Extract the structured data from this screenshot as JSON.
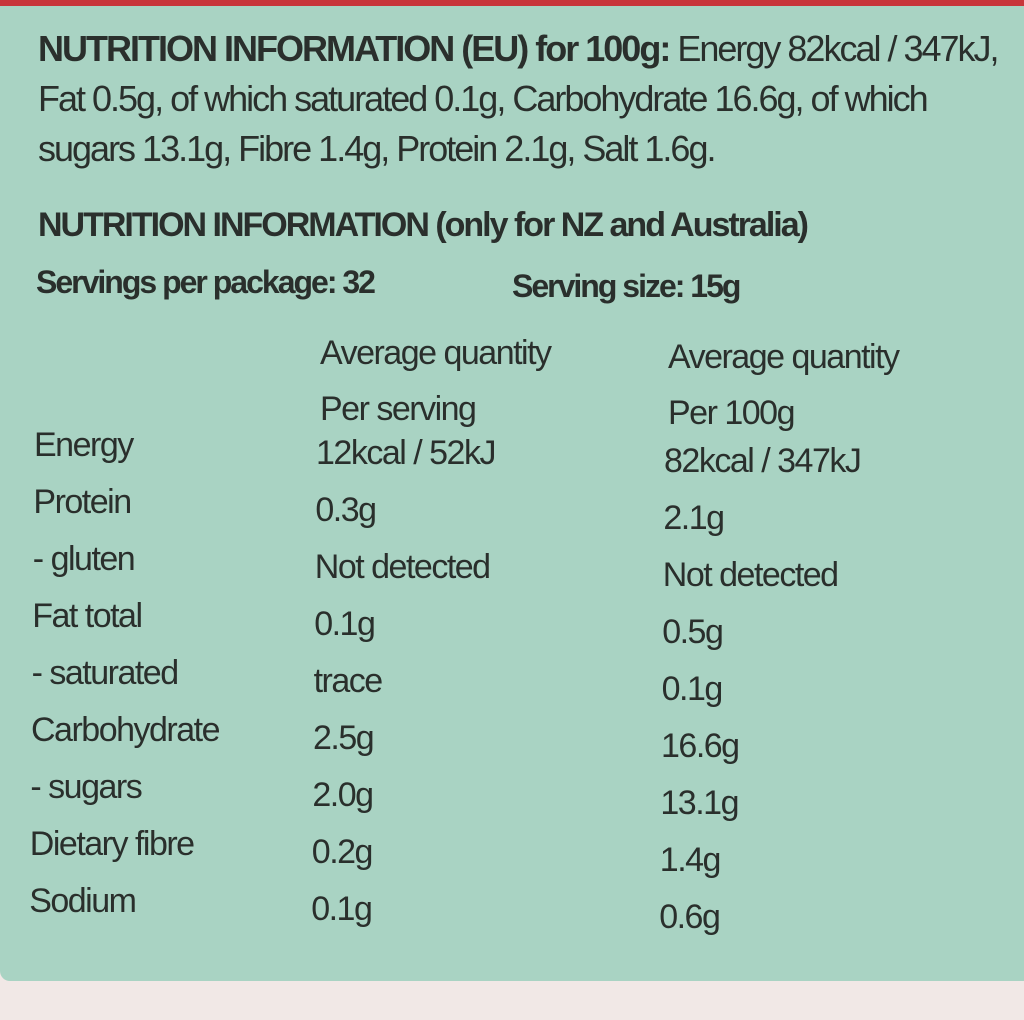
{
  "eu": {
    "heading": "NUTRITION INFORMATION (EU) for 100g:",
    "text": "Energy 82kcal / 347kJ, Fat 0.5g, of which saturated 0.1g, Carbohydrate 16.6g, of which sugars 13.1g, Fibre 1.4g, Protein 2.1g, Salt 1.6g."
  },
  "nz": {
    "heading": "NUTRITION INFORMATION (only for NZ and Australia)",
    "servings": "Servings per package: 32",
    "serving_size": "Serving size: 15g"
  },
  "table": {
    "headers": [
      [
        "Average quantity",
        "Per serving"
      ],
      [
        "Average quantity",
        "Per 100g"
      ]
    ],
    "rows": [
      [
        "Energy",
        "12kcal / 52kJ",
        "82kcal / 347kJ"
      ],
      [
        "Protein",
        "0.3g",
        "2.1g"
      ],
      [
        "- gluten",
        "Not detected",
        "Not detected"
      ],
      [
        "Fat total",
        "0.1g",
        "0.5g"
      ],
      [
        "- saturated",
        "trace",
        "0.1g"
      ],
      [
        "Carbohydrate",
        "2.5g",
        "16.6g"
      ],
      [
        "- sugars",
        "2.0g",
        "13.1g"
      ],
      [
        "Dietary fibre",
        "0.2g",
        "1.4g"
      ],
      [
        "Sodium",
        "0.1g",
        "0.6g"
      ]
    ]
  }
}
